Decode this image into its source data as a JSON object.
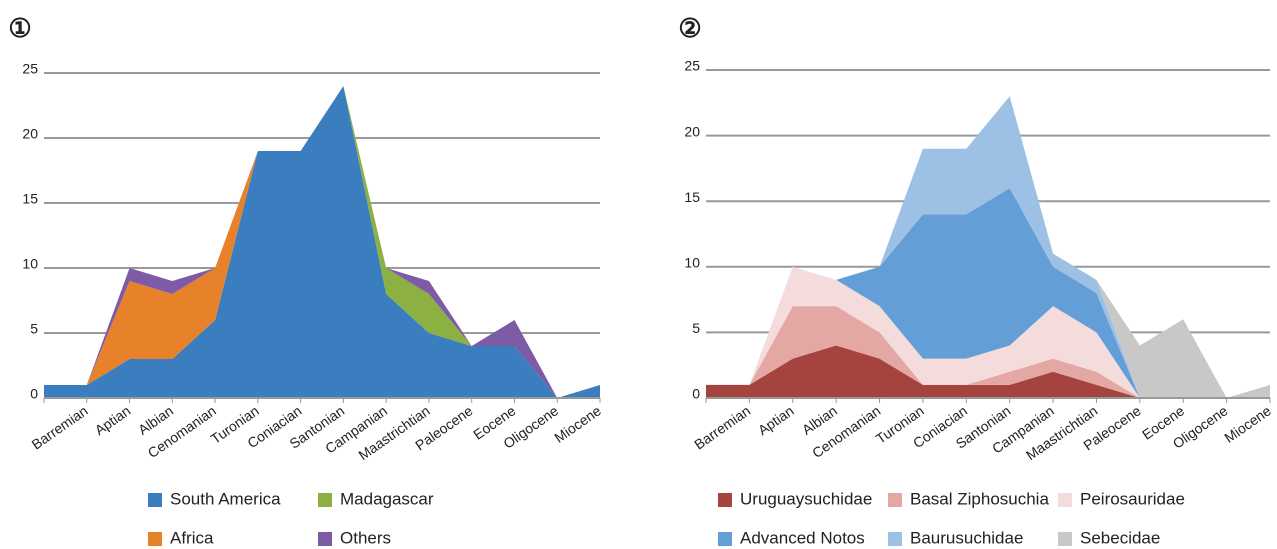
{
  "chart_data": [
    {
      "type": "stacked-area",
      "number": "①",
      "categories": [
        null,
        "Barremian",
        "Aptian",
        "Albian",
        "Cenomanian",
        "Turonian",
        "Coniacian",
        "Santonian",
        "Campanian",
        "Maastrichtian",
        "Paleocene",
        "Eocene",
        "Oligocene",
        "Miocene"
      ],
      "series": [
        {
          "name": "South America",
          "color": "#3a7ebf",
          "values": [
            1,
            1,
            3,
            3,
            6,
            19,
            19,
            24,
            8,
            5,
            4,
            4,
            0,
            1
          ]
        },
        {
          "name": "Africa",
          "color": "#e8822a",
          "values": [
            0,
            0,
            6,
            5,
            4,
            0,
            0,
            0,
            0,
            0,
            0,
            0,
            0,
            0
          ]
        },
        {
          "name": "Madagascar",
          "color": "#8db043",
          "values": [
            0,
            0,
            0,
            0,
            0,
            0,
            0,
            0,
            2,
            3,
            0,
            0,
            0,
            0
          ]
        },
        {
          "name": "Others",
          "color": "#7d5ba6",
          "values": [
            0,
            0,
            1,
            1,
            0,
            0,
            0,
            0,
            0,
            1,
            0,
            2,
            0,
            0
          ]
        }
      ],
      "ylim": [
        0,
        25
      ],
      "yticks": [
        0,
        5,
        10,
        15,
        20,
        25
      ],
      "grid": true
    },
    {
      "type": "stacked-area",
      "number": "②",
      "categories": [
        null,
        "Barremian",
        "Aptian",
        "Albian",
        "Cenomanian",
        "Turonian",
        "Coniacian",
        "Santonian",
        "Campanian",
        "Maastrichtian",
        "Paleocene",
        "Eocene",
        "Oligocene",
        "Miocene"
      ],
      "series": [
        {
          "name": "Uruguaysuchidae",
          "color": "#a5433f",
          "values": [
            1,
            1,
            3,
            4,
            3,
            1,
            1,
            1,
            2,
            1,
            0,
            0,
            0,
            0
          ]
        },
        {
          "name": "Basal Ziphosuchia",
          "color": "#e3a7a4",
          "values": [
            0,
            0,
            4,
            3,
            2,
            0,
            0,
            1,
            1,
            1,
            0,
            0,
            0,
            0
          ]
        },
        {
          "name": "Peirosauridae",
          "color": "#f5dcdc",
          "values": [
            0,
            0,
            3,
            2,
            2,
            2,
            2,
            2,
            4,
            3,
            0,
            0,
            0,
            0
          ]
        },
        {
          "name": "Advanced Notos",
          "color": "#649ed6",
          "values": [
            0,
            0,
            0,
            0,
            3,
            11,
            11,
            12,
            3,
            3,
            0,
            0,
            0,
            0
          ]
        },
        {
          "name": "Baurusuchidae",
          "color": "#9dc0e5",
          "values": [
            0,
            0,
            0,
            0,
            0,
            5,
            5,
            7,
            1,
            1,
            0,
            0,
            0,
            0
          ]
        },
        {
          "name": "Sebecidae",
          "color": "#c8c8c8",
          "values": [
            0,
            0,
            0,
            0,
            0,
            0,
            0,
            0,
            0,
            0,
            4,
            6,
            0,
            1
          ]
        }
      ],
      "ylim": [
        0,
        25
      ],
      "yticks": [
        0,
        5,
        10,
        15,
        20,
        25
      ],
      "grid": true
    }
  ]
}
